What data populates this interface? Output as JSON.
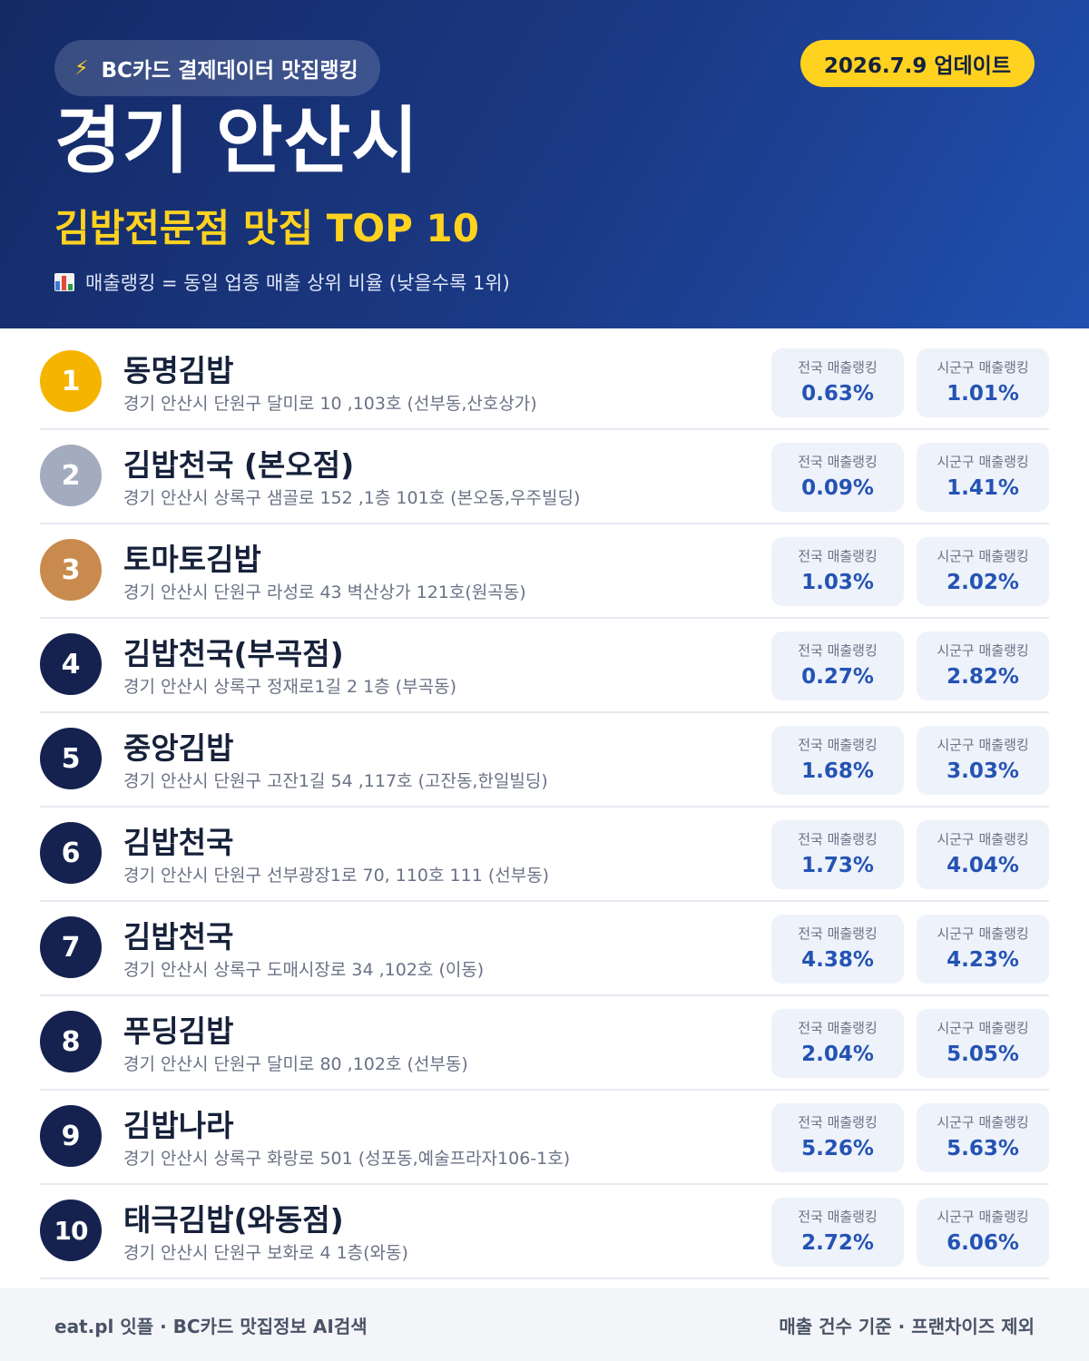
{
  "header": {
    "source_label": "BC카드 결제데이터 맛집랭킹",
    "source_icon": "lightning-bolt-icon",
    "update_badge": "2026.7.9 업데이트",
    "region": "경기 안산시",
    "subtitle": "김밥전문점 맛집 TOP 10",
    "note": "매출랭킹 = 동일 업종 매출 상위 비율 (낮을수록 1위)",
    "note_icon": "bar-chart-icon"
  },
  "stat_labels": {
    "national": "전국 매출랭킹",
    "local": "시군구 매출랭킹"
  },
  "restaurants": [
    {
      "rank": "1",
      "name": "동명김밥",
      "address": "경기 안산시 단원구 달미로 10 ,103호 (선부동,산호상가)",
      "national": "0.63%",
      "local": "1.01%"
    },
    {
      "rank": "2",
      "name": "김밥천국 (본오점)",
      "address": "경기 안산시 상록구 샘골로 152 ,1층 101호 (본오동,우주빌딩)",
      "national": "0.09%",
      "local": "1.41%"
    },
    {
      "rank": "3",
      "name": "토마토김밥",
      "address": "경기 안산시 단원구 라성로 43 벽산상가 121호(원곡동)",
      "national": "1.03%",
      "local": "2.02%"
    },
    {
      "rank": "4",
      "name": "김밥천국(부곡점)",
      "address": "경기 안산시 상록구 정재로1길 2 1층 (부곡동)",
      "national": "0.27%",
      "local": "2.82%"
    },
    {
      "rank": "5",
      "name": "중앙김밥",
      "address": "경기 안산시 단원구 고잔1길 54 ,117호 (고잔동,한일빌딩)",
      "national": "1.68%",
      "local": "3.03%"
    },
    {
      "rank": "6",
      "name": "김밥천국",
      "address": "경기 안산시 단원구 선부광장1로 70, 110호 111 (선부동)",
      "national": "1.73%",
      "local": "4.04%"
    },
    {
      "rank": "7",
      "name": "김밥천국",
      "address": "경기 안산시 상록구 도매시장로 34 ,102호 (이동)",
      "national": "4.38%",
      "local": "4.23%"
    },
    {
      "rank": "8",
      "name": "푸딩김밥",
      "address": "경기 안산시 단원구 달미로 80 ,102호 (선부동)",
      "national": "2.04%",
      "local": "5.05%"
    },
    {
      "rank": "9",
      "name": "김밥나라",
      "address": "경기 안산시 상록구 화랑로 501 (성포동,예술프라자106-1호)",
      "national": "5.26%",
      "local": "5.63%"
    },
    {
      "rank": "10",
      "name": "태극김밥(와동점)",
      "address": "경기 안산시 단원구 보화로 4 1층(와동)",
      "national": "2.72%",
      "local": "6.06%"
    }
  ],
  "footer": {
    "left": "eat.pl 잇플 · BC카드 맛집정보 AI검색",
    "right": "매출 건수 기준 · 프랜차이즈 제외"
  },
  "colors": {
    "header_dark": "#142a66",
    "header_light": "#2050b0",
    "accent_yellow": "#ffd21f",
    "rank_gold": "#f4b400",
    "rank_silver": "#a3acbf",
    "rank_bronze": "#c98a4d",
    "rank_default": "#15224f",
    "stat_value": "#2453b3"
  }
}
